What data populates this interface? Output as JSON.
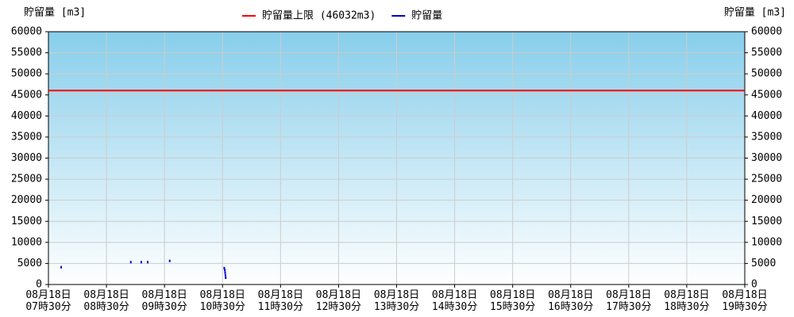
{
  "chart_data": {
    "type": "line",
    "y_label": "貯留量 [m3]",
    "y2_label": "貯留量 [m3]",
    "ylim": [
      0,
      60000
    ],
    "yticks": [
      0,
      5000,
      10000,
      15000,
      20000,
      25000,
      30000,
      35000,
      40000,
      45000,
      50000,
      55000,
      60000
    ],
    "y2lim": [
      0,
      60000
    ],
    "y2ticks": [
      0,
      5000,
      10000,
      15000,
      20000,
      25000,
      30000,
      35000,
      40000,
      45000,
      50000,
      55000,
      60000
    ],
    "xlim": [
      7.5,
      19.5
    ],
    "xticks": [
      {
        "value": 7.5,
        "label": "08月18日 07時30分"
      },
      {
        "value": 8.5,
        "label": "08月18日 08時30分"
      },
      {
        "value": 9.5,
        "label": "08月18日 09時30分"
      },
      {
        "value": 10.5,
        "label": "08月18日 10時30分"
      },
      {
        "value": 11.5,
        "label": "08月18日 11時30分"
      },
      {
        "value": 12.5,
        "label": "08月18日 12時30分"
      },
      {
        "value": 13.5,
        "label": "08月18日 13時30分"
      },
      {
        "value": 14.5,
        "label": "08月18日 14時30分"
      },
      {
        "value": 15.5,
        "label": "08月18日 15時30分"
      },
      {
        "value": 16.5,
        "label": "08月18日 16時30分"
      },
      {
        "value": 17.5,
        "label": "08月18日 17時30分"
      },
      {
        "value": 18.5,
        "label": "08月18日 18時30分"
      },
      {
        "value": 19.5,
        "label": "08月18日 19時30分"
      }
    ],
    "grid": true,
    "series": [
      {
        "name": "貯留量上限 (46032m3)",
        "color": "#ff0000",
        "style": "line",
        "x": [
          7.5,
          19.5
        ],
        "values": [
          46032,
          46032
        ]
      },
      {
        "name": "貯留量",
        "color": "#0000cc",
        "style": "marks",
        "x": [
          7.72,
          8.92,
          9.1,
          9.21,
          9.59,
          10.53,
          10.54,
          10.545,
          10.55,
          10.555
        ],
        "values": [
          4100,
          5300,
          5300,
          5300,
          5600,
          3900,
          3400,
          2800,
          2200,
          1600
        ]
      }
    ]
  }
}
